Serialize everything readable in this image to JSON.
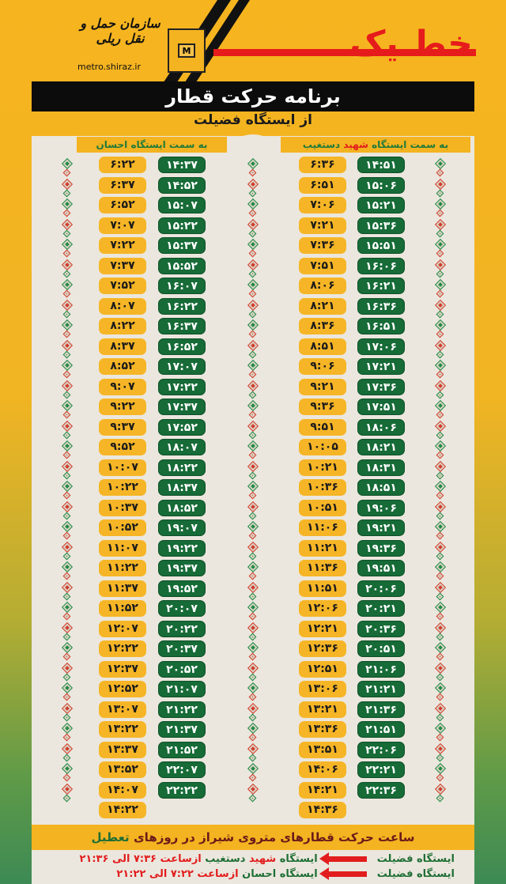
{
  "header": {
    "line_title": "خط یک",
    "org_name": "سازمان حمل و نقل ریلی",
    "website": "metro.shiraz.ir",
    "logo_letter": "M",
    "title": "برنامه حرکت قطار",
    "subtitle": "از ایستگاه فضیلت"
  },
  "directions": {
    "right": {
      "prefix": "به سمت ایستگاه",
      "highlight": "شهید",
      "suffix": "دستغیب"
    },
    "left": {
      "label": "به سمت ایستگاه احسان"
    }
  },
  "schedule": {
    "right_morning": [
      "۶:۳۶",
      "۶:۵۱",
      "۷:۰۶",
      "۷:۲۱",
      "۷:۳۶",
      "۷:۵۱",
      "۸:۰۶",
      "۸:۲۱",
      "۸:۳۶",
      "۸:۵۱",
      "۹:۰۶",
      "۹:۲۱",
      "۹:۳۶",
      "۹:۵۱",
      "۱۰:۰۵",
      "۱۰:۲۱",
      "۱۰:۳۶",
      "۱۰:۵۱",
      "۱۱:۰۶",
      "۱۱:۲۱",
      "۱۱:۳۶",
      "۱۱:۵۱",
      "۱۲:۰۶",
      "۱۲:۲۱",
      "۱۲:۳۶",
      "۱۲:۵۱",
      "۱۳:۰۶",
      "۱۳:۲۱",
      "۱۳:۳۶",
      "۱۳:۵۱",
      "۱۴:۰۶",
      "۱۴:۲۱",
      "۱۴:۳۶"
    ],
    "right_afternoon": [
      "۱۴:۵۱",
      "۱۵:۰۶",
      "۱۵:۲۱",
      "۱۵:۳۶",
      "۱۵:۵۱",
      "۱۶:۰۶",
      "۱۶:۲۱",
      "۱۶:۳۶",
      "۱۶:۵۱",
      "۱۷:۰۶",
      "۱۷:۲۱",
      "۱۷:۳۶",
      "۱۷:۵۱",
      "۱۸:۰۶",
      "۱۸:۲۱",
      "۱۸:۳۱",
      "۱۸:۵۱",
      "۱۹:۰۶",
      "۱۹:۲۱",
      "۱۹:۳۶",
      "۱۹:۵۱",
      "۲۰:۰۶",
      "۲۰:۲۱",
      "۲۰:۳۶",
      "۲۰:۵۱",
      "۲۱:۰۶",
      "۲۱:۲۱",
      "۲۱:۳۶",
      "۲۱:۵۱",
      "۲۲:۰۶",
      "۲۲:۲۱",
      "۲۲:۳۶"
    ],
    "left_morning": [
      "۶:۲۲",
      "۶:۳۷",
      "۶:۵۲",
      "۷:۰۷",
      "۷:۲۲",
      "۷:۳۷",
      "۷:۵۲",
      "۸:۰۷",
      "۸:۲۲",
      "۸:۳۷",
      "۸:۵۲",
      "۹:۰۷",
      "۹:۲۲",
      "۹:۳۷",
      "۹:۵۲",
      "۱۰:۰۷",
      "۱۰:۲۲",
      "۱۰:۳۷",
      "۱۰:۵۲",
      "۱۱:۰۷",
      "۱۱:۲۲",
      "۱۱:۳۷",
      "۱۱:۵۲",
      "۱۲:۰۷",
      "۱۲:۲۲",
      "۱۲:۳۷",
      "۱۲:۵۲",
      "۱۳:۰۷",
      "۱۳:۲۲",
      "۱۳:۳۷",
      "۱۳:۵۲",
      "۱۴:۰۷",
      "۱۴:۲۲"
    ],
    "left_afternoon": [
      "۱۴:۳۷",
      "۱۴:۵۲",
      "۱۵:۰۷",
      "۱۵:۲۲",
      "۱۵:۳۷",
      "۱۵:۵۲",
      "۱۶:۰۷",
      "۱۶:۲۲",
      "۱۶:۳۷",
      "۱۶:۵۲",
      "۱۷:۰۷",
      "۱۷:۲۲",
      "۱۷:۳۷",
      "۱۷:۵۲",
      "۱۸:۰۷",
      "۱۸:۲۲",
      "۱۸:۳۷",
      "۱۸:۵۲",
      "۱۹:۰۷",
      "۱۹:۲۲",
      "۱۹:۳۷",
      "۱۹:۵۲",
      "۲۰:۰۷",
      "۲۰:۲۲",
      "۲۰:۳۷",
      "۲۰:۵۲",
      "۲۱:۰۷",
      "۲۱:۲۲",
      "۲۱:۳۷",
      "۲۱:۵۲",
      "۲۲:۰۷",
      "۲۲:۲۲"
    ]
  },
  "footer": {
    "title_main": "ساعت حرکت قطارهای متروی شیراز در روزهای",
    "title_highlight": "تعطیل",
    "line1": {
      "from": "ایستگاه فضیلت",
      "to_prefix": "ایستگاه",
      "to_highlight": "شهید",
      "to_suffix": "دستغیب",
      "hours": "ازساعت ۷:۳۶ الی ۲۱:۳۶"
    },
    "line2": {
      "from": "ایستگاه فضیلت",
      "to": "ایستگاه احسان",
      "hours": "ازساعت ۷:۲۲ الی ۲۱:۲۲"
    }
  },
  "colors": {
    "yellow": "#f4b320",
    "green": "#166b37",
    "red": "#e61b1b",
    "black": "#0c0c0c",
    "cream": "#ebe7de"
  }
}
